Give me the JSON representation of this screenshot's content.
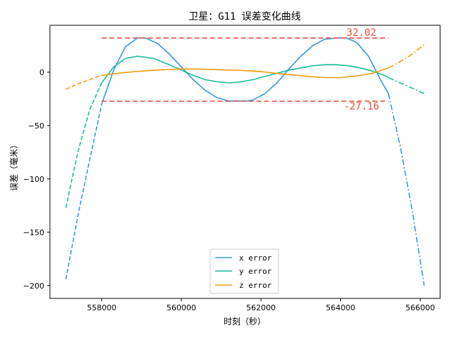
{
  "chart_data": {
    "type": "line",
    "title": "卫星：G11 误差变化曲线",
    "xlabel": "时刻（秒）",
    "ylabel": "误差（毫米）",
    "xlim": [
      556700,
      566500
    ],
    "ylim": [
      -212,
      44
    ],
    "xticks": [
      558000,
      560000,
      562000,
      564000,
      566000
    ],
    "yticks": [
      0,
      -50,
      -100,
      -150,
      -200
    ],
    "legend_position": "bottom-center",
    "grid": false,
    "colors": {
      "x": "#3498db",
      "y": "#1abc9c",
      "z": "#f39c12",
      "ref": "#e74c3c"
    },
    "fit_range": [
      558000,
      565200
    ],
    "series": [
      {
        "name": "x error",
        "color": "#3498db",
        "x": [
          557100,
          557400,
          557700,
          558000,
          558300,
          558600,
          558900,
          559100,
          559400,
          559700,
          560000,
          560300,
          560600,
          560900,
          561200,
          561500,
          561650,
          561800,
          562100,
          562400,
          562700,
          563000,
          563300,
          563600,
          563900,
          564150,
          564400,
          564700,
          565000,
          565200,
          565500,
          565800,
          566100
        ],
        "y": [
          -194,
          -135,
          -82,
          -30,
          2,
          24,
          32,
          32,
          27,
          17,
          5,
          -7,
          -17,
          -24,
          -27,
          -27,
          -27,
          -26,
          -20,
          -10,
          3,
          15,
          25,
          31,
          32,
          32,
          28,
          15,
          -7,
          -20,
          -70,
          -130,
          -200
        ]
      },
      {
        "name": "y error",
        "color": "#1abc9c",
        "x": [
          557100,
          557400,
          557700,
          558000,
          558300,
          558600,
          558900,
          559300,
          559700,
          560000,
          560300,
          560600,
          560900,
          561200,
          561500,
          561800,
          562100,
          562400,
          562700,
          563000,
          563300,
          563600,
          563900,
          564200,
          564500,
          564800,
          565100,
          565200,
          565500,
          565800,
          566100
        ],
        "y": [
          -127,
          -75,
          -35,
          -10,
          5,
          13,
          15,
          13,
          7,
          2,
          -3,
          -7,
          -9,
          -10,
          -9,
          -7,
          -4,
          -1,
          2,
          4,
          6,
          7,
          7,
          6,
          4,
          1,
          -3,
          -5,
          -10,
          -15,
          -20
        ]
      },
      {
        "name": "z error",
        "color": "#f39c12",
        "x": [
          557100,
          557400,
          557700,
          558000,
          558400,
          558800,
          559200,
          559600,
          560000,
          560400,
          560800,
          561200,
          561600,
          562000,
          562400,
          562800,
          563200,
          563600,
          564000,
          564400,
          564800,
          565200,
          565500,
          565800,
          566100
        ],
        "y": [
          -16,
          -11,
          -7,
          -3,
          -1,
          0.5,
          1.5,
          2.5,
          3,
          3,
          2.5,
          2,
          1.5,
          0.5,
          -1,
          -2.5,
          -4,
          -5,
          -5,
          -3.5,
          -1,
          4,
          10,
          17,
          26
        ]
      }
    ],
    "reference_lines": [
      {
        "y": 32.02,
        "x_start": 558000,
        "x_end": 565200,
        "label": "32.02",
        "color": "#e74c3c"
      },
      {
        "y": -27.16,
        "x_start": 558000,
        "x_end": 565200,
        "label": "-27.16",
        "color": "#e74c3c"
      }
    ]
  }
}
